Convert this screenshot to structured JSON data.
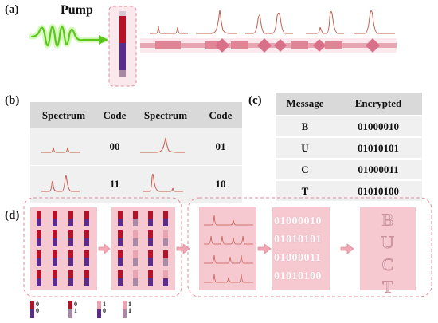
{
  "panel_a": {
    "label": "(a)",
    "pump_label": "Pump"
  },
  "panel_b": {
    "label": "(b)",
    "headers": [
      "Spectrum",
      "Code",
      "Spectrum",
      "Code"
    ],
    "codes": [
      "00",
      "01",
      "11",
      "10"
    ]
  },
  "panel_c": {
    "label": "(c)",
    "headers": [
      "Message",
      "Encrypted"
    ],
    "rows": [
      {
        "message": "B",
        "encrypted": "01000010"
      },
      {
        "message": "U",
        "encrypted": "01010101"
      },
      {
        "message": "C",
        "encrypted": "01000011"
      },
      {
        "message": "T",
        "encrypted": "01010100"
      }
    ]
  },
  "panel_d": {
    "label": "(d)",
    "binary_lines": [
      "01000010",
      "01010101",
      "01000011",
      "01010100"
    ],
    "decoded_letters": [
      "B",
      "U",
      "C",
      "T"
    ],
    "legend": [
      {
        "top": "0",
        "bottom": "0"
      },
      {
        "top": "0",
        "bottom": "1"
      },
      {
        "top": "1",
        "bottom": "0"
      },
      {
        "top": "1",
        "bottom": "1"
      }
    ]
  },
  "colors": {
    "pink_panel": "#f6c9d1",
    "dashed_pink": "#e48a9b",
    "bar_red": "#b5122a",
    "bar_purple": "#5a2d8c",
    "bar_mauve": "#a98aa6",
    "bar_pink": "#e9a3b3",
    "wave_green": "#6fcf2a",
    "spectrum_line": "#c25a4a"
  }
}
